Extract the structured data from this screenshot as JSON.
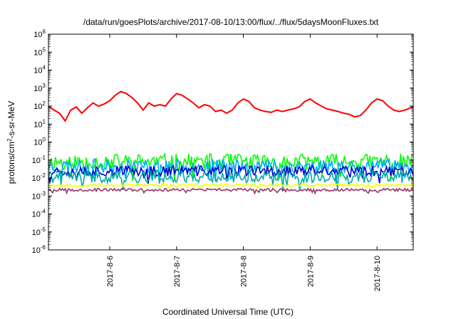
{
  "chart_data": {
    "type": "line",
    "title": "/data/run/goesPlots/archive/2017-08-10/13:00/flux/../flux/5daysMoonFluxes.txt",
    "xlabel": "Coordinated Universal Time (UTC)",
    "ylabel": "protons/cm2-s-sr-MeV",
    "ylabel_parts": {
      "pre": "protons/cm",
      "sup": "2",
      "post": "-s-sr-MeV"
    },
    "yscale": "log",
    "ylim": [
      1e-06,
      1000000.0
    ],
    "ytick_exponents": [
      -6,
      -5,
      -4,
      -3,
      -2,
      -1,
      0,
      1,
      2,
      3,
      4,
      5,
      6
    ],
    "ytick_base": "10",
    "xlim": [
      "2017-08-05 02:00",
      "2017-08-10 13:00"
    ],
    "xticks": [
      {
        "date": "2017-08-06",
        "label": "2017-8-6"
      },
      {
        "date": "2017-08-07",
        "label": "2017-8-7"
      },
      {
        "date": "2017-08-08",
        "label": "2017-8-8"
      },
      {
        "date": "2017-08-09",
        "label": "2017-8-9"
      },
      {
        "date": "2017-08-10",
        "label": "2017-8-10"
      }
    ],
    "grid": false,
    "series": [
      {
        "color": "#ff0000",
        "noise": 0.0,
        "points": [
          [
            "2017-08-05 02:00",
            100
          ],
          [
            "2017-08-05 04:00",
            60
          ],
          [
            "2017-08-05 06:00",
            40
          ],
          [
            "2017-08-05 08:00",
            15
          ],
          [
            "2017-08-05 10:00",
            60
          ],
          [
            "2017-08-05 12:00",
            90
          ],
          [
            "2017-08-05 14:00",
            40
          ],
          [
            "2017-08-05 16:00",
            80
          ],
          [
            "2017-08-05 18:00",
            150
          ],
          [
            "2017-08-05 20:00",
            100
          ],
          [
            "2017-08-05 22:00",
            130
          ],
          [
            "2017-08-06 00:00",
            200
          ],
          [
            "2017-08-06 02:00",
            400
          ],
          [
            "2017-08-06 04:00",
            650
          ],
          [
            "2017-08-06 06:00",
            500
          ],
          [
            "2017-08-06 08:00",
            300
          ],
          [
            "2017-08-06 10:00",
            150
          ],
          [
            "2017-08-06 12:00",
            60
          ],
          [
            "2017-08-06 14:00",
            150
          ],
          [
            "2017-08-06 16:00",
            100
          ],
          [
            "2017-08-06 18:00",
            120
          ],
          [
            "2017-08-06 20:00",
            100
          ],
          [
            "2017-08-06 22:00",
            250
          ],
          [
            "2017-08-07 00:00",
            500
          ],
          [
            "2017-08-07 02:00",
            400
          ],
          [
            "2017-08-07 04:00",
            250
          ],
          [
            "2017-08-07 06:00",
            150
          ],
          [
            "2017-08-07 08:00",
            80
          ],
          [
            "2017-08-07 10:00",
            120
          ],
          [
            "2017-08-07 12:00",
            100
          ],
          [
            "2017-08-07 14:00",
            50
          ],
          [
            "2017-08-07 16:00",
            60
          ],
          [
            "2017-08-07 18:00",
            40
          ],
          [
            "2017-08-07 20:00",
            60
          ],
          [
            "2017-08-07 22:00",
            150
          ],
          [
            "2017-08-08 00:00",
            250
          ],
          [
            "2017-08-08 02:00",
            180
          ],
          [
            "2017-08-08 04:00",
            80
          ],
          [
            "2017-08-08 06:00",
            60
          ],
          [
            "2017-08-08 08:00",
            50
          ],
          [
            "2017-08-08 10:00",
            45
          ],
          [
            "2017-08-08 12:00",
            60
          ],
          [
            "2017-08-08 14:00",
            50
          ],
          [
            "2017-08-08 16:00",
            60
          ],
          [
            "2017-08-08 18:00",
            70
          ],
          [
            "2017-08-08 20:00",
            90
          ],
          [
            "2017-08-08 22:00",
            180
          ],
          [
            "2017-08-09 00:00",
            250
          ],
          [
            "2017-08-09 02:00",
            150
          ],
          [
            "2017-08-09 04:00",
            100
          ],
          [
            "2017-08-09 06:00",
            70
          ],
          [
            "2017-08-09 08:00",
            60
          ],
          [
            "2017-08-09 10:00",
            50
          ],
          [
            "2017-08-09 12:00",
            40
          ],
          [
            "2017-08-09 14:00",
            35
          ],
          [
            "2017-08-09 16:00",
            25
          ],
          [
            "2017-08-09 18:00",
            30
          ],
          [
            "2017-08-09 20:00",
            60
          ],
          [
            "2017-08-09 22:00",
            150
          ],
          [
            "2017-08-10 00:00",
            250
          ],
          [
            "2017-08-10 02:00",
            200
          ],
          [
            "2017-08-10 04:00",
            100
          ],
          [
            "2017-08-10 06:00",
            60
          ],
          [
            "2017-08-10 08:00",
            50
          ],
          [
            "2017-08-10 10:00",
            60
          ],
          [
            "2017-08-10 12:00",
            80
          ],
          [
            "2017-08-10 13:00",
            90
          ]
        ]
      },
      {
        "color": "#00ff00",
        "baseline": 0.08,
        "noise": 0.45,
        "seed": 11
      },
      {
        "color": "#00aaff",
        "baseline": 0.045,
        "noise": 0.4,
        "seed": 23
      },
      {
        "color": "#0000cc",
        "baseline": 0.025,
        "noise": 0.3,
        "seed": 37
      },
      {
        "color": "#00aaaa",
        "baseline": 0.012,
        "noise": 0.35,
        "seed": 41
      },
      {
        "color": "#ffff00",
        "baseline": 0.004,
        "noise": 0.08,
        "seed": 53
      },
      {
        "color": "#993366",
        "baseline": 0.0022,
        "noise": 0.08,
        "seed": 67
      }
    ]
  }
}
